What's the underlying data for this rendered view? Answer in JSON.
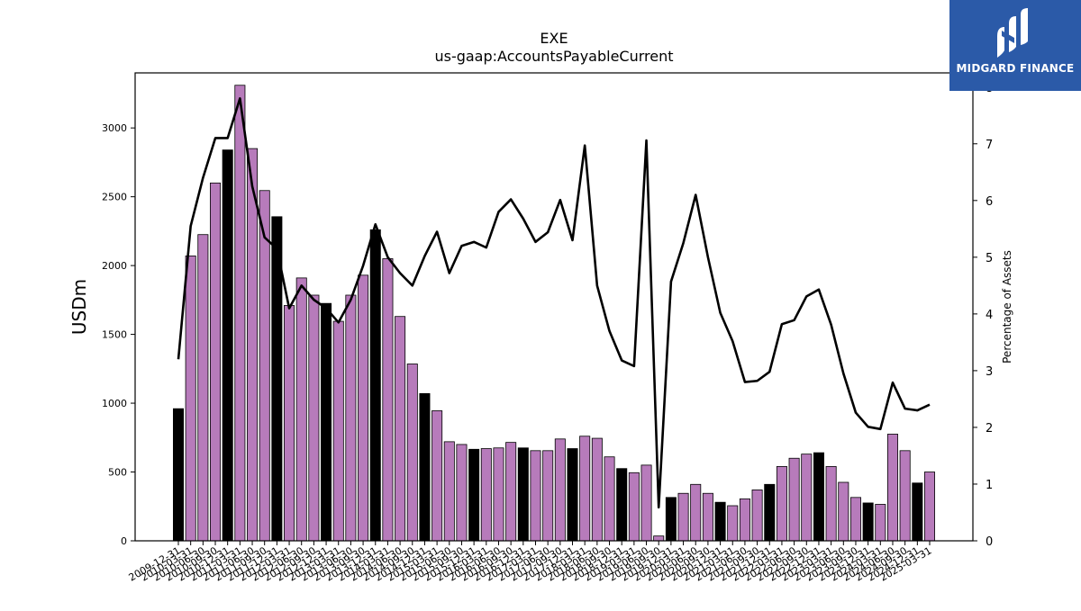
{
  "brand": {
    "name": "MIDGARD FINANCE",
    "logo_icon": "midgard-logo-icon",
    "bg_color": "#2b5aa8"
  },
  "chart_data": {
    "type": "bar",
    "title": "EXE",
    "subtitle": "us-gaap:AccountsPayableCurrent",
    "ylabel": "USDm",
    "y2label": "Percentage of Assets",
    "ylim": [
      0,
      3400
    ],
    "y2lim": [
      0,
      8.25
    ],
    "yticks": [
      0,
      500,
      1000,
      1500,
      2000,
      2500,
      3000
    ],
    "y2ticks": [
      0,
      1,
      2,
      3,
      4,
      5,
      6,
      7,
      8
    ],
    "grid": false,
    "colors": {
      "q4_bar": "#000000",
      "other_bar": "#b77bbb",
      "line": "#000000"
    },
    "categories": [
      "2009-12-31",
      "2010-03-31",
      "2010-06-30",
      "2010-09-30",
      "2010-12-31",
      "2011-03-31",
      "2011-06-30",
      "2011-09-30",
      "2011-12-31",
      "2012-03-31",
      "2012-06-30",
      "2012-09-30",
      "2012-12-31",
      "2013-03-31",
      "2013-06-30",
      "2013-09-30",
      "2013-12-31",
      "2014-03-31",
      "2014-06-30",
      "2014-09-30",
      "2014-12-31",
      "2015-03-31",
      "2015-06-30",
      "2015-09-30",
      "2015-12-31",
      "2016-03-31",
      "2016-06-30",
      "2016-09-30",
      "2016-12-31",
      "2017-03-31",
      "2017-06-30",
      "2017-09-30",
      "2017-12-31",
      "2018-03-31",
      "2018-06-30",
      "2018-09-30",
      "2018-12-31",
      "2019-03-31",
      "2019-06-30",
      "2019-09-30",
      "2019-12-31",
      "2020-03-31",
      "2020-06-30",
      "2020-09-30",
      "2020-12-31",
      "2021-03-31",
      "2021-06-30",
      "2021-09-30",
      "2021-12-31",
      "2022-03-31",
      "2022-06-30",
      "2022-09-30",
      "2022-12-31",
      "2023-03-31",
      "2023-06-30",
      "2023-09-30",
      "2023-12-31",
      "2024-03-31",
      "2024-06-30",
      "2024-09-30",
      "2024-12-31",
      "2025-03-31"
    ],
    "series": [
      {
        "name": "",
        "axis": "left",
        "kind": "bar",
        "values": [
          960,
          2070,
          2225,
          2600,
          2840,
          3310,
          2850,
          2545,
          2355,
          1710,
          1910,
          1785,
          1725,
          1595,
          1785,
          1930,
          2260,
          2050,
          1630,
          1285,
          1070,
          945,
          720,
          700,
          665,
          670,
          675,
          715,
          675,
          655,
          655,
          740,
          670,
          760,
          745,
          610,
          525,
          495,
          550,
          35,
          315,
          345,
          410,
          345,
          280,
          255,
          305,
          370,
          410,
          540,
          600,
          630,
          640,
          540,
          425,
          315,
          275,
          265,
          775,
          655,
          420,
          500
        ]
      },
      {
        "name": "",
        "axis": "right",
        "kind": "line",
        "values": [
          3.2,
          5.55,
          6.4,
          7.1,
          7.1,
          7.8,
          6.25,
          5.35,
          5.15,
          4.1,
          4.5,
          4.25,
          4.1,
          3.85,
          4.25,
          4.85,
          5.58,
          5.0,
          4.72,
          4.5,
          5.02,
          5.45,
          4.72,
          5.2,
          5.27,
          5.17,
          5.8,
          6.02,
          5.68,
          5.27,
          5.44,
          6.01,
          5.3,
          6.97,
          4.5,
          3.7,
          3.18,
          3.08,
          7.06,
          0.59,
          4.57,
          5.25,
          6.1,
          5.0,
          4.02,
          3.52,
          2.8,
          2.82,
          2.98,
          3.82,
          3.89,
          4.31,
          4.43,
          3.81,
          2.95,
          2.26,
          2.01,
          1.97,
          2.79,
          2.33,
          2.3,
          2.4
        ]
      }
    ]
  }
}
